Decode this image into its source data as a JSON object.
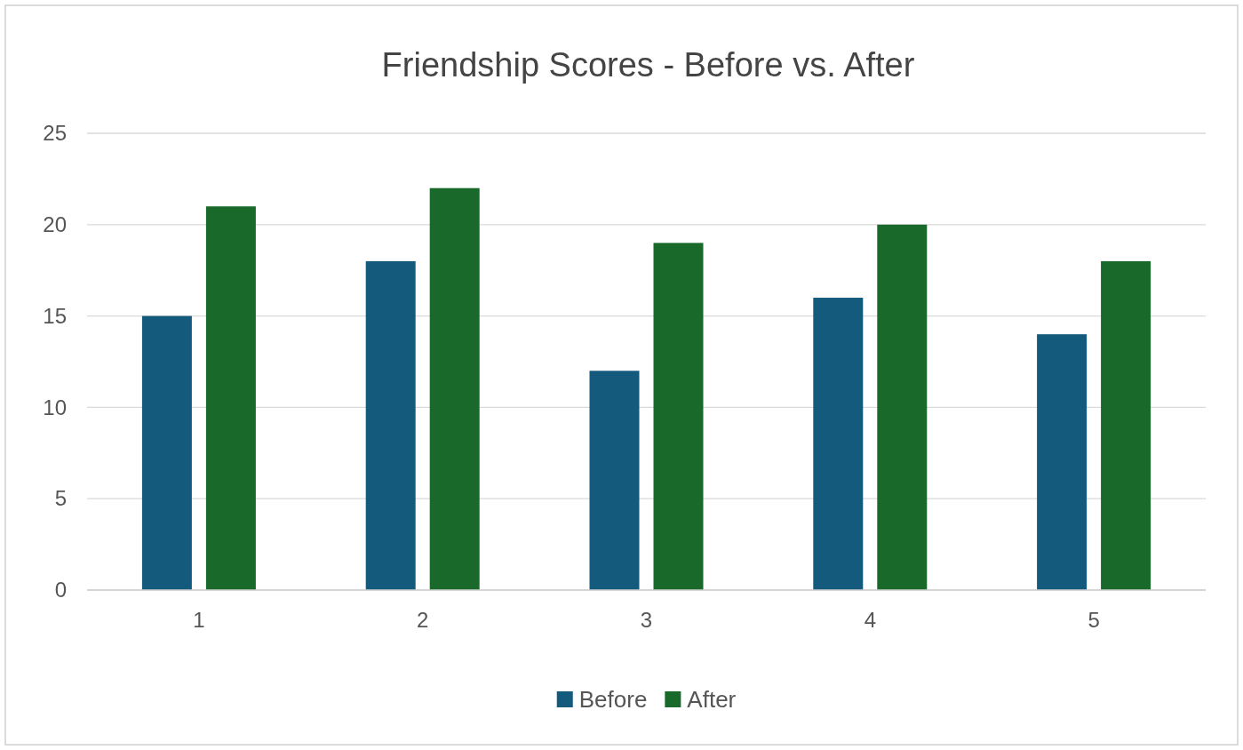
{
  "chart_data": {
    "type": "bar",
    "title": "Friendship Scores - Before vs. After",
    "categories": [
      "1",
      "2",
      "3",
      "4",
      "5"
    ],
    "series": [
      {
        "name": "Before",
        "color": "#145a7c",
        "values": [
          15,
          18,
          12,
          16,
          14
        ]
      },
      {
        "name": "After",
        "color": "#18692a",
        "values": [
          21,
          22,
          19,
          20,
          18
        ]
      }
    ],
    "ylim": [
      0,
      25
    ],
    "yticks": [
      0,
      5,
      10,
      15,
      20,
      25
    ],
    "grid": "y",
    "legend": "bottom"
  }
}
